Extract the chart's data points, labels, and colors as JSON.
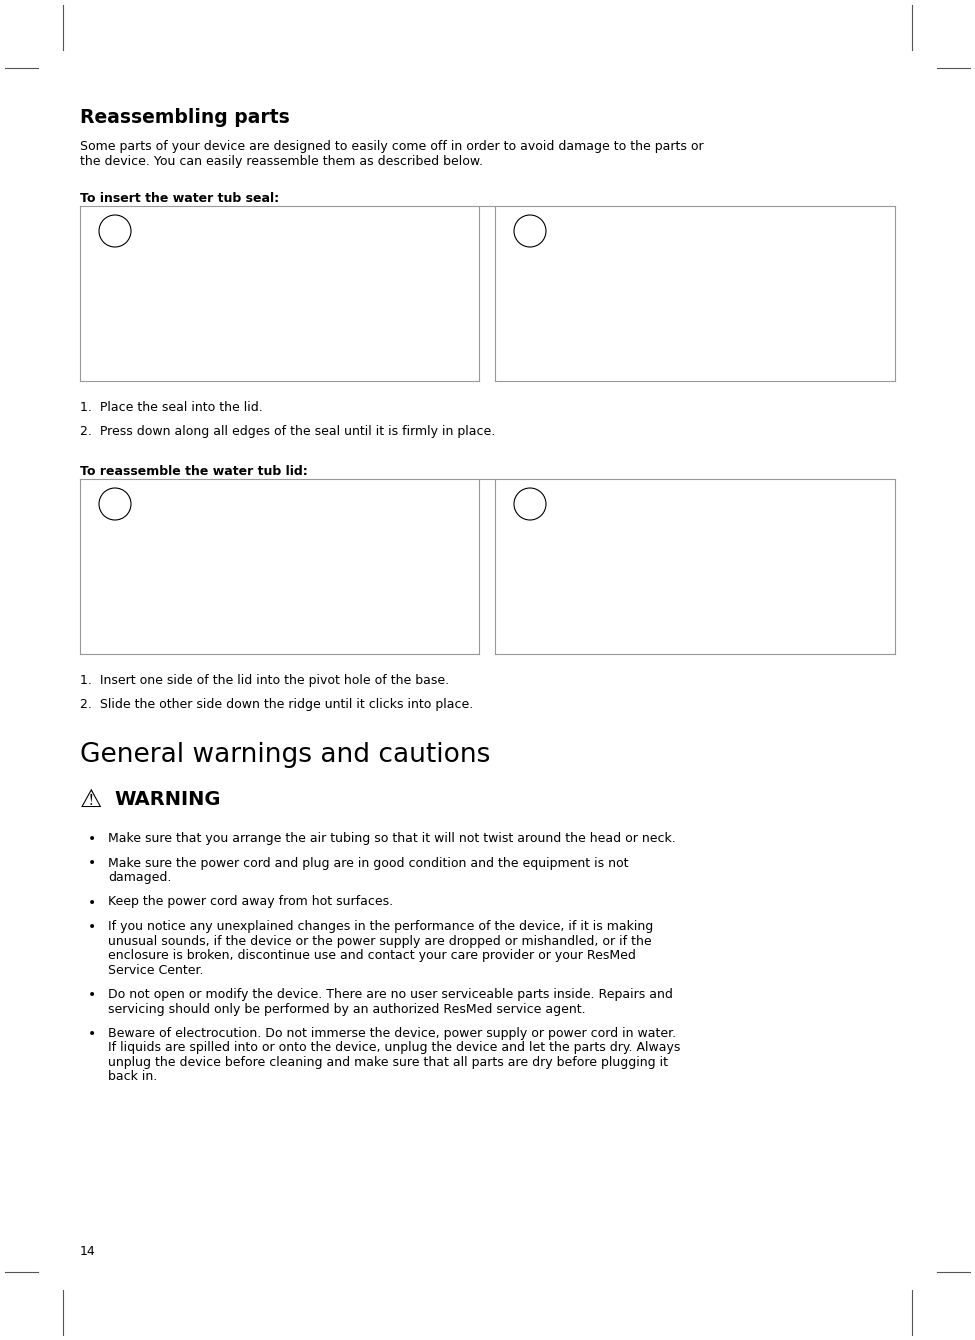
{
  "page_number": "14",
  "bg_color": "#ffffff",
  "section_title": "Reassembling parts",
  "section_title_fontsize": 13.5,
  "intro_text": "Some parts of your device are designed to easily come off in order to avoid damage to the parts or\nthe device. You can easily reassemble them as described below.",
  "intro_fontsize": 9.0,
  "subsection1_label": "To insert the water tub seal:",
  "subsection2_label": "To reassemble the water tub lid:",
  "subsection_fontsize": 9.0,
  "steps1": [
    "1.  Place the seal into the lid.",
    "2.  Press down along all edges of the seal until it is firmly in place."
  ],
  "steps2": [
    "1.  Insert one side of the lid into the pivot hole of the base.",
    "2.  Slide the other side down the ridge until it clicks into place."
  ],
  "steps_fontsize": 9.0,
  "general_title": "General warnings and cautions",
  "general_title_fontsize": 19,
  "warning_fontsize": 14,
  "bullet_items": [
    "Make sure that you arrange the air tubing so that it will not twist around the head or neck.",
    "Make sure the power cord and plug are in good condition and the equipment is not\ndamaged.",
    "Keep the power cord away from hot surfaces.",
    "If you notice any unexplained changes in the performance of the device, if it is making\nunusual sounds, if the device or the power supply are dropped or mishandled, or if the\nenclosure is broken, discontinue use and contact your care provider or your ResMed\nService Center.",
    "Do not open or modify the device. There are no user serviceable parts inside. Repairs and\nservicing should only be performed by an authorized ResMed service agent.",
    "Beware of electrocution. Do not immerse the device, power supply or power cord in water.\nIf liquids are spilled into or onto the device, unplug the device and let the parts dry. Always\nunplug the device before cleaning and make sure that all parts are dry before plugging it\nback in."
  ],
  "bullet_fontsize": 9.0,
  "line_color": "#999999",
  "text_color": "#000000"
}
